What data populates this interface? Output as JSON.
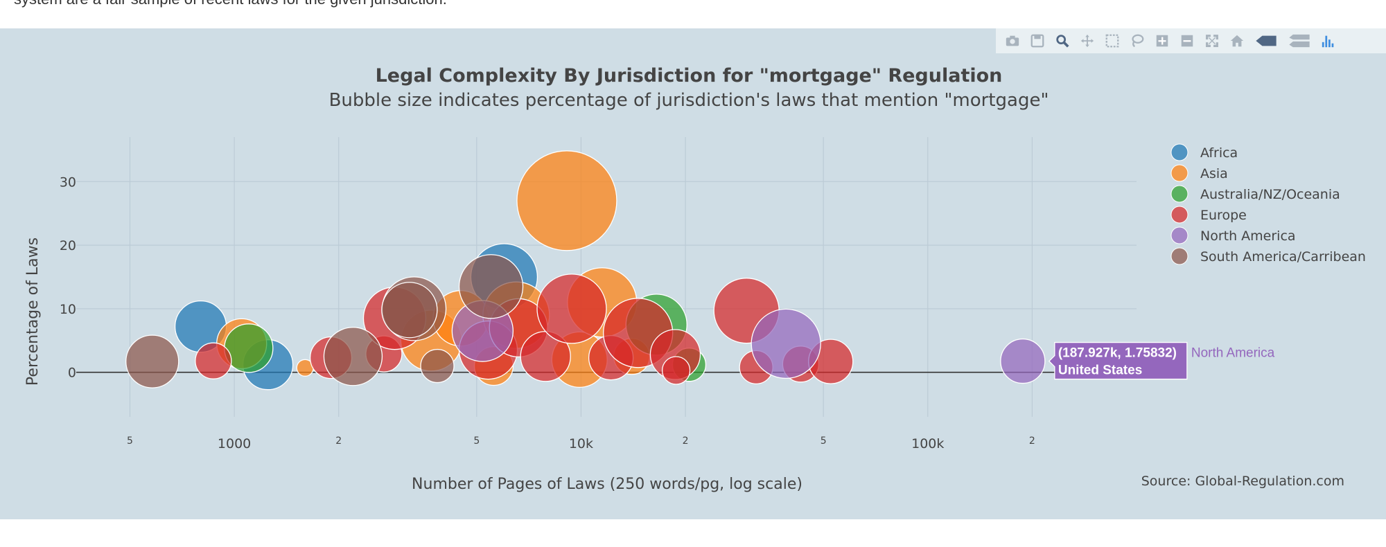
{
  "page": {
    "intro_text": "system are a fair sample of recent laws for the given jurisdiction."
  },
  "modebar": {
    "icons": [
      "camera-icon",
      "save-icon",
      "zoom-icon",
      "pan-icon",
      "box-select-icon",
      "lasso-icon",
      "zoom-in-icon",
      "zoom-out-icon",
      "autoscale-icon",
      "home-icon",
      "hover-closest-icon",
      "hover-compare-icon",
      "plotly-logo-icon"
    ]
  },
  "chart_data": {
    "type": "scatter",
    "title": "Legal Complexity By Jurisdiction for \"mortgage\" Regulation",
    "subtitle": "Bubble size indicates percentage of jurisdiction's laws that mention \"mortgage\"",
    "xlabel": "Number of Pages of Laws (250 words/pg, log scale)",
    "ylabel": "Percentage of Laws",
    "xscale": "log",
    "xlim": [
      350,
      400000
    ],
    "ylim": [
      -7,
      37
    ],
    "x_ticks": [
      {
        "v": 500,
        "t": "5"
      },
      {
        "v": 1000,
        "t": "1000"
      },
      {
        "v": 2000,
        "t": "2"
      },
      {
        "v": 5000,
        "t": "5"
      },
      {
        "v": 10000,
        "t": "10k"
      },
      {
        "v": 20000,
        "t": "2"
      },
      {
        "v": 50000,
        "t": "5"
      },
      {
        "v": 100000,
        "t": "100k"
      },
      {
        "v": 200000,
        "t": "2"
      }
    ],
    "y_ticks": [
      {
        "v": 0,
        "t": "0"
      },
      {
        "v": 10,
        "t": "10"
      },
      {
        "v": 20,
        "t": "20"
      },
      {
        "v": 30,
        "t": "30"
      }
    ],
    "grid": true,
    "legend_position": "top-right",
    "source": "Source: Global-Regulation.com",
    "series": [
      {
        "name": "Africa",
        "color": "#1f77b4",
        "points": [
          {
            "x": 800,
            "y": 7.2,
            "r": 37
          },
          {
            "x": 1250,
            "y": 1.2,
            "r": 36
          },
          {
            "x": 6000,
            "y": 15,
            "r": 48
          }
        ]
      },
      {
        "name": "Asia",
        "color": "#ff7f0e",
        "points": [
          {
            "x": 1050,
            "y": 4.5,
            "r": 36
          },
          {
            "x": 1600,
            "y": 0.7,
            "r": 12
          },
          {
            "x": 3700,
            "y": 5,
            "r": 44
          },
          {
            "x": 4500,
            "y": 8.5,
            "r": 40
          },
          {
            "x": 5600,
            "y": 1.0,
            "r": 28
          },
          {
            "x": 6500,
            "y": 9,
            "r": 48
          },
          {
            "x": 9100,
            "y": 27,
            "r": 72
          },
          {
            "x": 9900,
            "y": 2,
            "r": 40
          },
          {
            "x": 11500,
            "y": 11,
            "r": 50
          },
          {
            "x": 14000,
            "y": 2.5,
            "r": 26
          }
        ]
      },
      {
        "name": "Australia/NZ/Oceania",
        "color": "#2ca02c",
        "points": [
          {
            "x": 1100,
            "y": 3.8,
            "r": 35
          },
          {
            "x": 16500,
            "y": 7.5,
            "r": 44
          },
          {
            "x": 20500,
            "y": 1.2,
            "r": 24
          }
        ]
      },
      {
        "name": "Europe",
        "color": "#d62728",
        "points": [
          {
            "x": 870,
            "y": 1.8,
            "r": 26
          },
          {
            "x": 1900,
            "y": 2.3,
            "r": 30
          },
          {
            "x": 2700,
            "y": 2.9,
            "r": 26
          },
          {
            "x": 2900,
            "y": 8.5,
            "r": 45
          },
          {
            "x": 5400,
            "y": 3.5,
            "r": 42
          },
          {
            "x": 6600,
            "y": 7,
            "r": 42
          },
          {
            "x": 7900,
            "y": 2.5,
            "r": 36
          },
          {
            "x": 9400,
            "y": 10,
            "r": 50
          },
          {
            "x": 12200,
            "y": 2.3,
            "r": 32
          },
          {
            "x": 14600,
            "y": 6.2,
            "r": 50
          },
          {
            "x": 18700,
            "y": 2.8,
            "r": 36
          },
          {
            "x": 18800,
            "y": 0.3,
            "r": 20
          },
          {
            "x": 30000,
            "y": 9.7,
            "r": 47
          },
          {
            "x": 32000,
            "y": 0.8,
            "r": 24
          },
          {
            "x": 43000,
            "y": 1.3,
            "r": 26
          },
          {
            "x": 52500,
            "y": 1.7,
            "r": 32
          }
        ]
      },
      {
        "name": "North America",
        "color": "#9467bd",
        "points": [
          {
            "x": 5200,
            "y": 6.5,
            "r": 44
          },
          {
            "x": 39000,
            "y": 4.5,
            "r": 50
          },
          {
            "x": 187927,
            "y": 1.75832,
            "r": 32,
            "label": "United States"
          }
        ]
      },
      {
        "name": "South America/Carribean",
        "color": "#8c564b",
        "points": [
          {
            "x": 580,
            "y": 1.7,
            "r": 38
          },
          {
            "x": 2200,
            "y": 2.5,
            "r": 42
          },
          {
            "x": 3300,
            "y": 10,
            "r": 46
          },
          {
            "x": 3850,
            "y": 1.0,
            "r": 24
          },
          {
            "x": 5500,
            "y": 13.5,
            "r": 46
          },
          {
            "x": 3200,
            "y": 9.8,
            "r": 40
          }
        ]
      }
    ],
    "hover": {
      "series": "North America",
      "coord_text": "(187.927k, 1.75832)",
      "label_text": "United States",
      "side_text": "North America"
    }
  }
}
